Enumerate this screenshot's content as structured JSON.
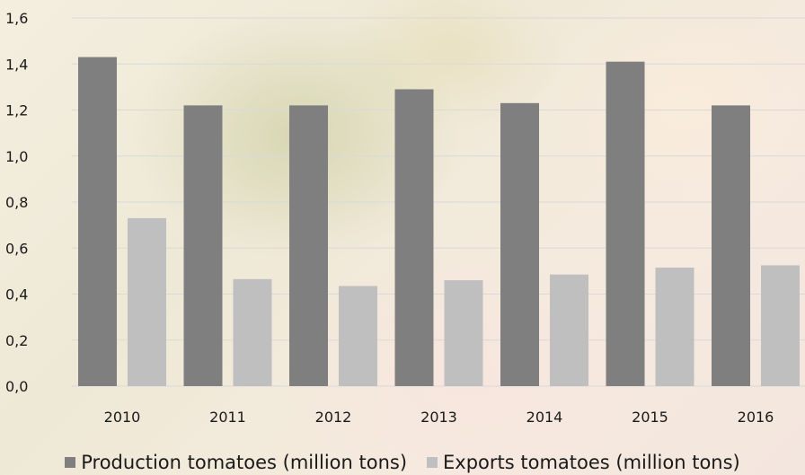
{
  "chart_data": {
    "type": "bar",
    "categories": [
      "2010",
      "2011",
      "2012",
      "2013",
      "2014",
      "2015",
      "2016"
    ],
    "series": [
      {
        "name": "Production tomatoes (million tons)",
        "color": "#7f7f7f",
        "values": [
          1.43,
          1.22,
          1.22,
          1.29,
          1.23,
          1.41,
          1.22
        ]
      },
      {
        "name": "Exports tomatoes (million tons)",
        "color": "#bfbfbf",
        "values": [
          0.73,
          0.465,
          0.435,
          0.46,
          0.485,
          0.515,
          0.525
        ]
      }
    ],
    "y_ticks": [
      "0,0",
      "0,2",
      "0,4",
      "0,6",
      "0,8",
      "1,0",
      "1,2",
      "1,4",
      "1,6"
    ],
    "ylim": [
      0,
      1.6
    ],
    "grid": true,
    "legend_position": "bottom"
  }
}
